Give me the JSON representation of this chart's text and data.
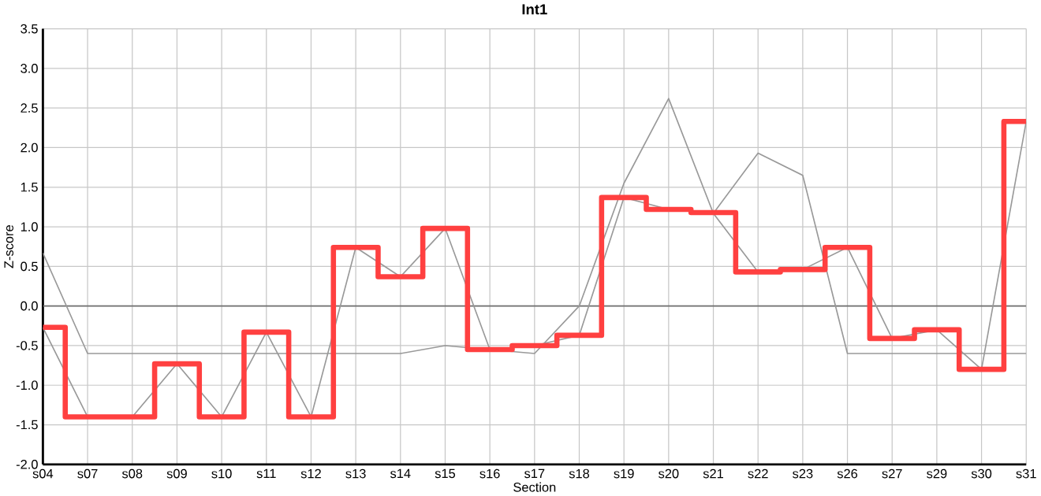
{
  "chart_data": {
    "type": "line",
    "title": "Int1",
    "xlabel": "Section",
    "ylabel": "Z-score",
    "categories": [
      "s04",
      "s07",
      "s08",
      "s09",
      "s10",
      "s11",
      "s12",
      "s13",
      "s14",
      "s15",
      "s16",
      "s17",
      "s18",
      "s19",
      "s20",
      "s21",
      "s22",
      "s23",
      "s26",
      "s27",
      "s29",
      "s30",
      "s31"
    ],
    "series": [
      {
        "color": "#999999",
        "values": [
          -0.27,
          -1.4,
          -1.4,
          -0.73,
          -1.4,
          -0.33,
          -1.4,
          0.74,
          0.37,
          0.98,
          -0.55,
          -0.5,
          -0.37,
          1.37,
          1.22,
          1.17,
          0.43,
          0.46,
          0.74,
          -0.41,
          -0.3,
          -0.8,
          2.33
        ]
      },
      {
        "color": "#999999",
        "values": [
          0.67,
          -0.6,
          -0.6,
          -0.6,
          -0.6,
          -0.6,
          -0.6,
          -0.6,
          -0.6,
          -0.5,
          -0.55,
          -0.6,
          0.0,
          1.55,
          2.62,
          1.17,
          1.93,
          1.65,
          -0.6,
          -0.6,
          -0.6,
          -0.6,
          -0.6
        ]
      },
      {
        "type": "step",
        "color": "#ff4040",
        "values": [
          -0.27,
          -1.4,
          -1.4,
          -0.73,
          -1.4,
          -0.33,
          -1.4,
          0.74,
          0.37,
          0.98,
          -0.55,
          -0.5,
          -0.37,
          1.37,
          1.22,
          1.18,
          0.43,
          0.46,
          0.74,
          -0.41,
          -0.3,
          -0.8,
          2.33
        ]
      }
    ],
    "ylim": [
      -2.0,
      3.5
    ],
    "yticks": [
      {
        "value": -2.0,
        "label": "-2.0"
      },
      {
        "value": -1.5,
        "label": "-1.5"
      },
      {
        "value": -1.0,
        "label": "-1.0"
      },
      {
        "value": -0.5,
        "label": "-0.5"
      },
      {
        "value": 0.0,
        "label": "0.0"
      },
      {
        "value": 0.5,
        "label": "0.5"
      },
      {
        "value": 1.0,
        "label": "1.0"
      },
      {
        "value": 1.5,
        "label": "1.5"
      },
      {
        "value": 2.0,
        "label": "2.0"
      },
      {
        "value": 2.5,
        "label": "2.5"
      },
      {
        "value": 3.0,
        "label": "3.0"
      },
      {
        "value": 3.5,
        "label": "3.5"
      }
    ],
    "grid": true,
    "ref_lines": [
      {
        "axis": "y",
        "value": 0.0,
        "color": "#707070"
      }
    ]
  }
}
